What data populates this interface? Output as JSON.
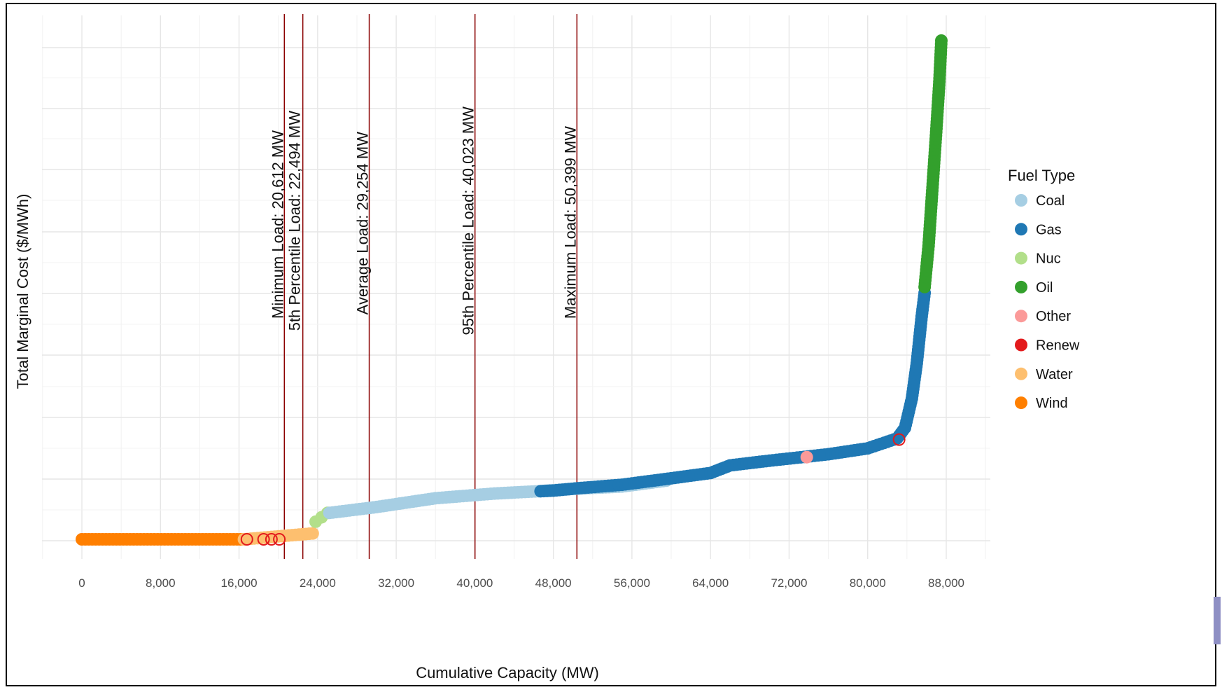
{
  "chart_data": {
    "type": "scatter",
    "title": "",
    "xlabel": "Cumulative Capacity (MW)",
    "ylabel": "Total Marginal Cost ($/MWh)",
    "xlim": [
      -4000,
      92000
    ],
    "x_ticks": [
      0,
      8000,
      16000,
      24000,
      32000,
      40000,
      48000,
      56000,
      64000,
      72000,
      80000,
      88000
    ],
    "x_tick_labels": [
      "0",
      "8,000",
      "16,000",
      "24,000",
      "32,000",
      "40,000",
      "48,000",
      "56,000",
      "64,000",
      "72,000",
      "80,000",
      "88,000"
    ],
    "y_tick_labels_shown": false,
    "grid": true,
    "legend": {
      "title": "Fuel Type",
      "placement": "right",
      "entries": [
        {
          "name": "Coal",
          "color": "#a6cee3"
        },
        {
          "name": "Gas",
          "color": "#1f78b4"
        },
        {
          "name": "Nuc",
          "color": "#b2df8a"
        },
        {
          "name": "Oil",
          "color": "#33a02c"
        },
        {
          "name": "Other",
          "color": "#fb9a99"
        },
        {
          "name": "Renew",
          "color": "#e31a1c"
        },
        {
          "name": "Water",
          "color": "#fdbf6f"
        },
        {
          "name": "Wind",
          "color": "#ff7f00"
        }
      ]
    },
    "vertical_lines": [
      {
        "x": 20612,
        "label": "Minimum Load: 20,612 MW",
        "color": "#8b0000"
      },
      {
        "x": 22494,
        "label": "5th Percentile Load: 22,494 MW",
        "color": "#8b0000"
      },
      {
        "x": 29254,
        "label": "Average Load: 29,254 MW",
        "color": "#8b0000"
      },
      {
        "x": 40023,
        "label": "95th Percentile Load: 40,023 MW",
        "color": "#8b0000"
      },
      {
        "x": 50399,
        "label": "Maximum Load: 50,399 MW",
        "color": "#8b0000"
      }
    ],
    "series": [
      {
        "name": "Wind",
        "color": "#ff7f00",
        "points": [
          [
            0,
            0
          ],
          [
            16500,
            0
          ]
        ]
      },
      {
        "name": "Water",
        "color": "#fdbf6f",
        "points": [
          [
            16500,
            0
          ],
          [
            23500,
            0.1
          ]
        ]
      },
      {
        "name": "Renew",
        "color": "#e31a1c",
        "points": [
          [
            16800,
            0
          ],
          [
            18500,
            0
          ],
          [
            19300,
            0
          ],
          [
            20100,
            0
          ],
          [
            83200,
            1.7
          ]
        ]
      },
      {
        "name": "Nuc",
        "color": "#b2df8a",
        "points": [
          [
            23800,
            0.3
          ],
          [
            25000,
            0.45
          ]
        ]
      },
      {
        "name": "Coal",
        "color": "#a6cee3",
        "points": [
          [
            25200,
            0.45
          ],
          [
            30000,
            0.55
          ],
          [
            36000,
            0.7
          ],
          [
            42000,
            0.78
          ],
          [
            46500,
            0.82
          ],
          [
            50000,
            0.86
          ],
          [
            55000,
            0.9
          ],
          [
            59500,
            1.0
          ]
        ]
      },
      {
        "name": "Gas",
        "color": "#1f78b4",
        "points": [
          [
            46700,
            0.82
          ],
          [
            48000,
            0.83
          ],
          [
            50500,
            0.87
          ],
          [
            55000,
            0.93
          ],
          [
            60000,
            1.04
          ],
          [
            64000,
            1.13
          ],
          [
            66000,
            1.26
          ],
          [
            70000,
            1.34
          ],
          [
            76000,
            1.45
          ],
          [
            80000,
            1.55
          ],
          [
            83000,
            1.72
          ],
          [
            83800,
            1.9
          ],
          [
            84500,
            2.4
          ],
          [
            85000,
            3.0
          ],
          [
            85500,
            3.8
          ],
          [
            85800,
            4.2
          ]
        ]
      },
      {
        "name": "Other",
        "color": "#fb9a99",
        "points": [
          [
            73800,
            1.4
          ]
        ]
      },
      {
        "name": "Oil",
        "color": "#33a02c",
        "points": [
          [
            85800,
            4.3
          ],
          [
            86200,
            5.0
          ],
          [
            86600,
            6.0
          ],
          [
            87000,
            7.0
          ],
          [
            87300,
            7.8
          ],
          [
            87500,
            8.5
          ]
        ]
      }
    ]
  }
}
